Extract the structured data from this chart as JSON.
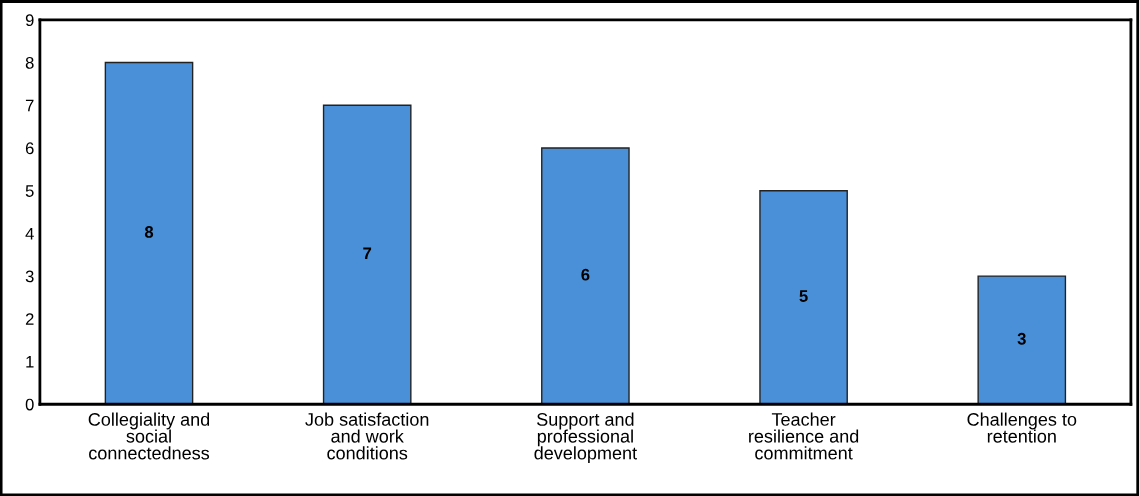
{
  "chart_data": {
    "type": "bar",
    "categories": [
      "Collegiality and\nsocial\nconnectedness",
      "Job satisfaction\nand work\nconditions",
      "Support and\nprofessional\ndevelopment",
      "Teacher\nresilience and\ncommitment",
      "Challenges to\nretention"
    ],
    "values": [
      8,
      7,
      6,
      5,
      3
    ],
    "color": "#4a90d9",
    "ylim": [
      0,
      9
    ],
    "yticks": [
      0,
      1,
      2,
      3,
      4,
      5,
      6,
      7,
      8,
      9
    ],
    "grid": false,
    "data_labels": true
  }
}
